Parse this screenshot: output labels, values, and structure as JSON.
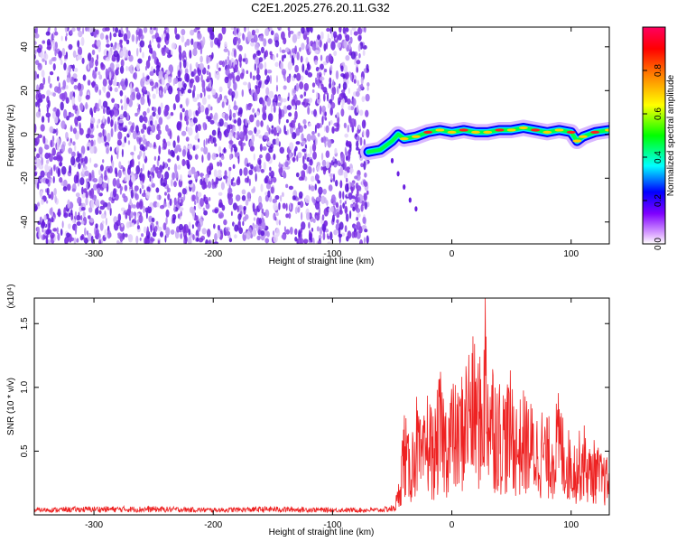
{
  "title": "C2E1.2025.276.20.11.G32",
  "colors": {
    "waterfall_noise": "#7a2ee0",
    "snr_line": "#ee2222",
    "colorbar": [
      "#ff00ff",
      "#7f00ff",
      "#0000ff",
      "#00ffff",
      "#00ff00",
      "#ffff00",
      "#ff7f00",
      "#ff0000",
      "#ff0060"
    ]
  },
  "chart_data": [
    {
      "type": "heatmap",
      "title": "C2E1.2025.276.20.11.G32",
      "xlabel": "Height of straight line (km)",
      "ylabel": "Frequency (Hz)",
      "xlim": [
        -350,
        132
      ],
      "ylim": [
        -50,
        49
      ],
      "x_ticks": [
        -300,
        -200,
        -100,
        0,
        100
      ],
      "y_ticks": [
        -40,
        -20,
        0,
        20,
        40
      ],
      "noise_region_x": [
        -350,
        -70
      ],
      "signal_trace": {
        "x": [
          -70,
          -60,
          -50,
          -45,
          -40,
          -30,
          -20,
          -10,
          0,
          10,
          20,
          30,
          40,
          50,
          60,
          70,
          80,
          90,
          100,
          105,
          110,
          120,
          132
        ],
        "frequency": [
          -8,
          -7,
          -3,
          0,
          -2,
          -1,
          1,
          2,
          1,
          2,
          1,
          1,
          2,
          2,
          3,
          2,
          1,
          2,
          1,
          -3,
          -1,
          1,
          2
        ]
      },
      "colorbar": {
        "label": "Normalized spectral amplitude",
        "range": [
          0.0,
          1.0
        ],
        "ticks": [
          "0.0",
          "0.2",
          "0.4",
          "0.6",
          "0.8"
        ]
      }
    },
    {
      "type": "line",
      "xlabel": "Height of straight line (km)",
      "ylabel": "SNR (10 * v/v)",
      "y_scale_label": "(x10⁴)",
      "xlim": [
        -350,
        132
      ],
      "ylim": [
        0,
        1.7
      ],
      "x_ticks": [
        -300,
        -200,
        -100,
        0,
        100
      ],
      "y_ticks": [
        0.5,
        1.0,
        1.5
      ],
      "y_tick_labels": [
        "0.5",
        "1.0",
        "1.5"
      ],
      "series": [
        {
          "x": [
            -350,
            -300,
            -250,
            -200,
            -150,
            -100,
            -60,
            -50,
            -45,
            -40,
            -35,
            -30,
            -25,
            -20,
            -15,
            -10,
            -5,
            0,
            5,
            10,
            15,
            20,
            25,
            28,
            30,
            35,
            40,
            45,
            50,
            55,
            60,
            65,
            70,
            75,
            80,
            85,
            90,
            95,
            100,
            105,
            110,
            115,
            120,
            125,
            132
          ],
          "values": [
            0.03,
            0.04,
            0.04,
            0.03,
            0.04,
            0.03,
            0.03,
            0.05,
            0.2,
            0.8,
            0.5,
            0.9,
            0.6,
            0.95,
            0.7,
            1.05,
            0.85,
            1.0,
            0.9,
            1.1,
            1.3,
            1.25,
            1.1,
            1.7,
            1.3,
            1.15,
            1.0,
            0.95,
            1.05,
            0.8,
            0.9,
            0.85,
            0.75,
            0.8,
            0.7,
            0.75,
            0.9,
            0.65,
            0.6,
            0.55,
            0.7,
            0.5,
            0.55,
            0.45,
            0.4
          ]
        }
      ]
    }
  ]
}
